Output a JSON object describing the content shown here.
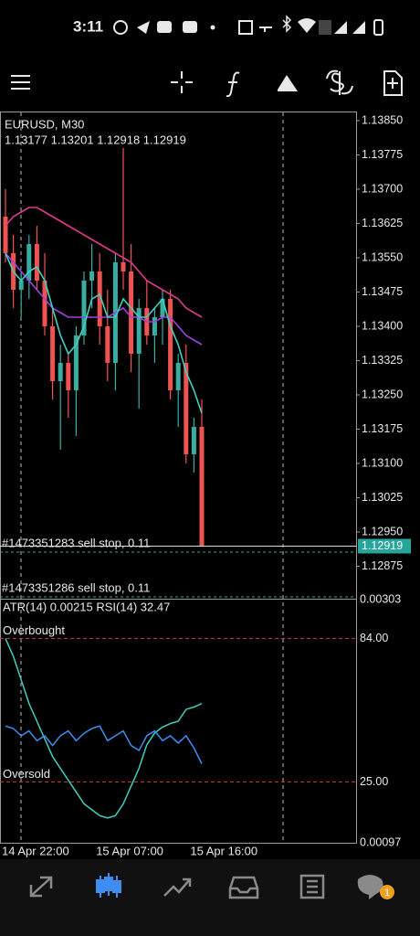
{
  "status_bar": {
    "time": "3:11"
  },
  "chart_data": {
    "type": "candlestick",
    "title": "EURUSD, M30",
    "subtitle": "1.13177 1.13201 1.12918 1.12919",
    "categories": [
      "14 Apr 22:00",
      null,
      null,
      null,
      null,
      null,
      null,
      null,
      null,
      null,
      null,
      null,
      "15 Apr 07:00",
      null,
      null,
      null,
      null,
      null,
      null,
      null,
      null,
      null,
      null,
      null,
      "15 Apr 16:00",
      null
    ],
    "open": [
      1.1364,
      1.1356,
      1.1348,
      1.135,
      1.1358,
      1.135,
      1.134,
      1.1328,
      1.1332,
      1.1326,
      1.1338,
      1.135,
      1.1352,
      1.134,
      1.1332,
      1.1354,
      1.1352,
      1.1334,
      1.1344,
      1.1338,
      1.1342,
      1.1346,
      1.1326,
      1.1332,
      1.1312,
      1.1318
    ],
    "high": [
      1.137,
      1.136,
      1.1352,
      1.136,
      1.1362,
      1.1356,
      1.1344,
      1.1336,
      1.1334,
      1.134,
      1.1352,
      1.1358,
      1.1356,
      1.1348,
      1.1356,
      1.1379,
      1.1358,
      1.1346,
      1.135,
      1.1344,
      1.1348,
      1.1348,
      1.1334,
      1.1336,
      1.132,
      1.1324
    ],
    "low": [
      1.1354,
      1.1344,
      1.1342,
      1.1346,
      1.1348,
      1.1338,
      1.1324,
      1.1313,
      1.132,
      1.1316,
      1.1336,
      1.1344,
      1.1336,
      1.1328,
      1.1326,
      1.1348,
      1.133,
      1.1322,
      1.1336,
      1.1332,
      1.1336,
      1.1324,
      1.1318,
      1.131,
      1.1308,
      1.12918
    ],
    "close": [
      1.1356,
      1.1348,
      1.135,
      1.1358,
      1.135,
      1.134,
      1.1328,
      1.1332,
      1.1326,
      1.1338,
      1.135,
      1.1352,
      1.134,
      1.1332,
      1.1354,
      1.1352,
      1.1334,
      1.1344,
      1.1338,
      1.1342,
      1.1346,
      1.1326,
      1.1332,
      1.1312,
      1.1318,
      1.12919
    ],
    "up_color": "#3aada0",
    "down_color": "#ef5350",
    "series": [
      {
        "color": "#e0388a",
        "values": [
          1.1362,
          1.1364,
          1.1365,
          1.1366,
          1.1366,
          1.1365,
          1.1364,
          1.1363,
          1.1362,
          1.1361,
          1.136,
          1.1359,
          1.1358,
          1.1357,
          1.1356,
          1.1355,
          1.1354,
          1.1352,
          1.135,
          1.1349,
          1.1348,
          1.1347,
          1.1346,
          1.1344,
          1.1343,
          1.1342
        ]
      },
      {
        "color": "#a040e0",
        "values": [
          1.1356,
          1.1354,
          1.1352,
          1.135,
          1.1348,
          1.1346,
          1.1344,
          1.1343,
          1.1342,
          1.1342,
          1.1342,
          1.1342,
          1.1342,
          1.1342,
          1.1343,
          1.1344,
          1.1342,
          1.1342,
          1.1341,
          1.1341,
          1.1342,
          1.1342,
          1.134,
          1.1338,
          1.1337,
          1.1336
        ]
      },
      {
        "color": "#40d0c0",
        "values": [
          1.1356,
          1.1352,
          1.135,
          1.1352,
          1.1353,
          1.135,
          1.1344,
          1.1338,
          1.1334,
          1.1336,
          1.134,
          1.1346,
          1.1347,
          1.1342,
          1.1342,
          1.1346,
          1.1344,
          1.1342,
          1.1342,
          1.1344,
          1.1346,
          1.134,
          1.1336,
          1.133,
          1.1326,
          1.1321
        ]
      }
    ],
    "ylim": [
      1.12806,
      1.13868
    ],
    "yticks": [
      {
        "value": 1.1385,
        "label": "1.13850"
      },
      1.13775,
      {
        "value": 1.137,
        "label": "1.13700"
      },
      1.13625,
      {
        "value": 1.1355,
        "label": "1.13550"
      },
      1.13475,
      {
        "value": 1.134,
        "label": "1.13400"
      },
      1.13325,
      {
        "value": 1.1325,
        "label": "1.13250"
      },
      1.13175,
      {
        "value": 1.131,
        "label": "1.13100"
      },
      1.13025,
      {
        "value": 1.1295,
        "label": "1.12950"
      },
      1.12875
    ],
    "current_price": 1.12919,
    "orders": [
      {
        "label": "#1473351283 sell stop, 0.11",
        "price": 1.12906
      },
      {
        "label": "#1473351286 sell stop, 0.11",
        "price": 1.12808
      }
    ],
    "indicator": {
      "label": "ATR(14) 0.00215 RSI(14) 32.47",
      "ylim": [
        0.00097,
        0.00303
      ],
      "rsi_lim": [
        0,
        100
      ],
      "levels": [
        {
          "name": "Overbought",
          "value": 84,
          "label": "84.00"
        },
        {
          "name": "Oversold",
          "value": 25,
          "label": "25.00"
        }
      ],
      "atr": {
        "color": "#40d0c0",
        "values": [
          0.0027,
          0.00255,
          0.00235,
          0.00215,
          0.002,
          0.00185,
          0.0017,
          0.0016,
          0.0015,
          0.0014,
          0.0013,
          0.00125,
          0.0012,
          0.00118,
          0.0012,
          0.0013,
          0.00145,
          0.0016,
          0.0018,
          0.0019,
          0.00195,
          0.00198,
          0.002,
          0.0021,
          0.00212,
          0.00215
        ]
      },
      "rsi": {
        "color": "#3d8ef0",
        "values": [
          48,
          47,
          44,
          46,
          42,
          44,
          40,
          44,
          46,
          42,
          45,
          47,
          48,
          42,
          44,
          46,
          40,
          38,
          44,
          46,
          42,
          44,
          41,
          44,
          39,
          32.47
        ]
      }
    }
  },
  "bottom_nav": {
    "chat_badge": "1"
  }
}
